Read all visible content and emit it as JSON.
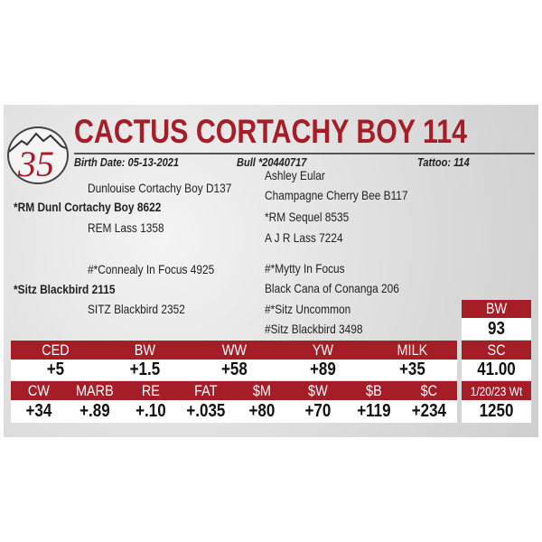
{
  "header": {
    "lot_number": "35",
    "name": "CACTUS CORTACHY BOY 114",
    "birth_date": "Birth Date: 05-13-2021",
    "registration": "Bull *20440717",
    "tattoo": "Tattoo: 114"
  },
  "pedigree": {
    "left": [
      {
        "text": "Dunlouise Cortachy Boy D137",
        "bold": false
      },
      {
        "text": "*RM Dunl Cortachy Boy 8622",
        "bold": true
      },
      {
        "text": "REM Lass 1358",
        "bold": false
      },
      {
        "text": "#*Connealy In Focus 4925",
        "bold": false
      },
      {
        "text": "*Sitz Blackbird 2115",
        "bold": true
      },
      {
        "text": "SITZ Blackbird 2352",
        "bold": false
      }
    ],
    "right": [
      "Ashley Eular",
      "Champagne Cherry Bee B117",
      "*RM Sequel 8535",
      "A J R Lass 7224",
      "#*Mytty In Focus",
      "Black Cana of Conanga 206",
      "#*Sitz Uncommon",
      "#Sitz Blackbird 3498"
    ]
  },
  "side": {
    "bw_label": "BW",
    "bw_value": "93",
    "sc_label": "SC",
    "sc_value": "41.00",
    "wt_label": "1/20/23 Wt",
    "wt_value": "1250"
  },
  "epds_row1": {
    "labels": [
      "CED",
      "BW",
      "WW",
      "YW",
      "MILK"
    ],
    "values": [
      "+5",
      "+1.5",
      "+58",
      "+89",
      "+35"
    ]
  },
  "epds_row2": {
    "labels": [
      "CW",
      "MARB",
      "RE",
      "FAT",
      "$M",
      "$W",
      "$B",
      "$C"
    ],
    "values": [
      "+34",
      "+.89",
      "+.10",
      "+.035",
      "+80",
      "+70",
      "+119",
      "+234"
    ]
  },
  "colors": {
    "accent": "#a51d27"
  }
}
